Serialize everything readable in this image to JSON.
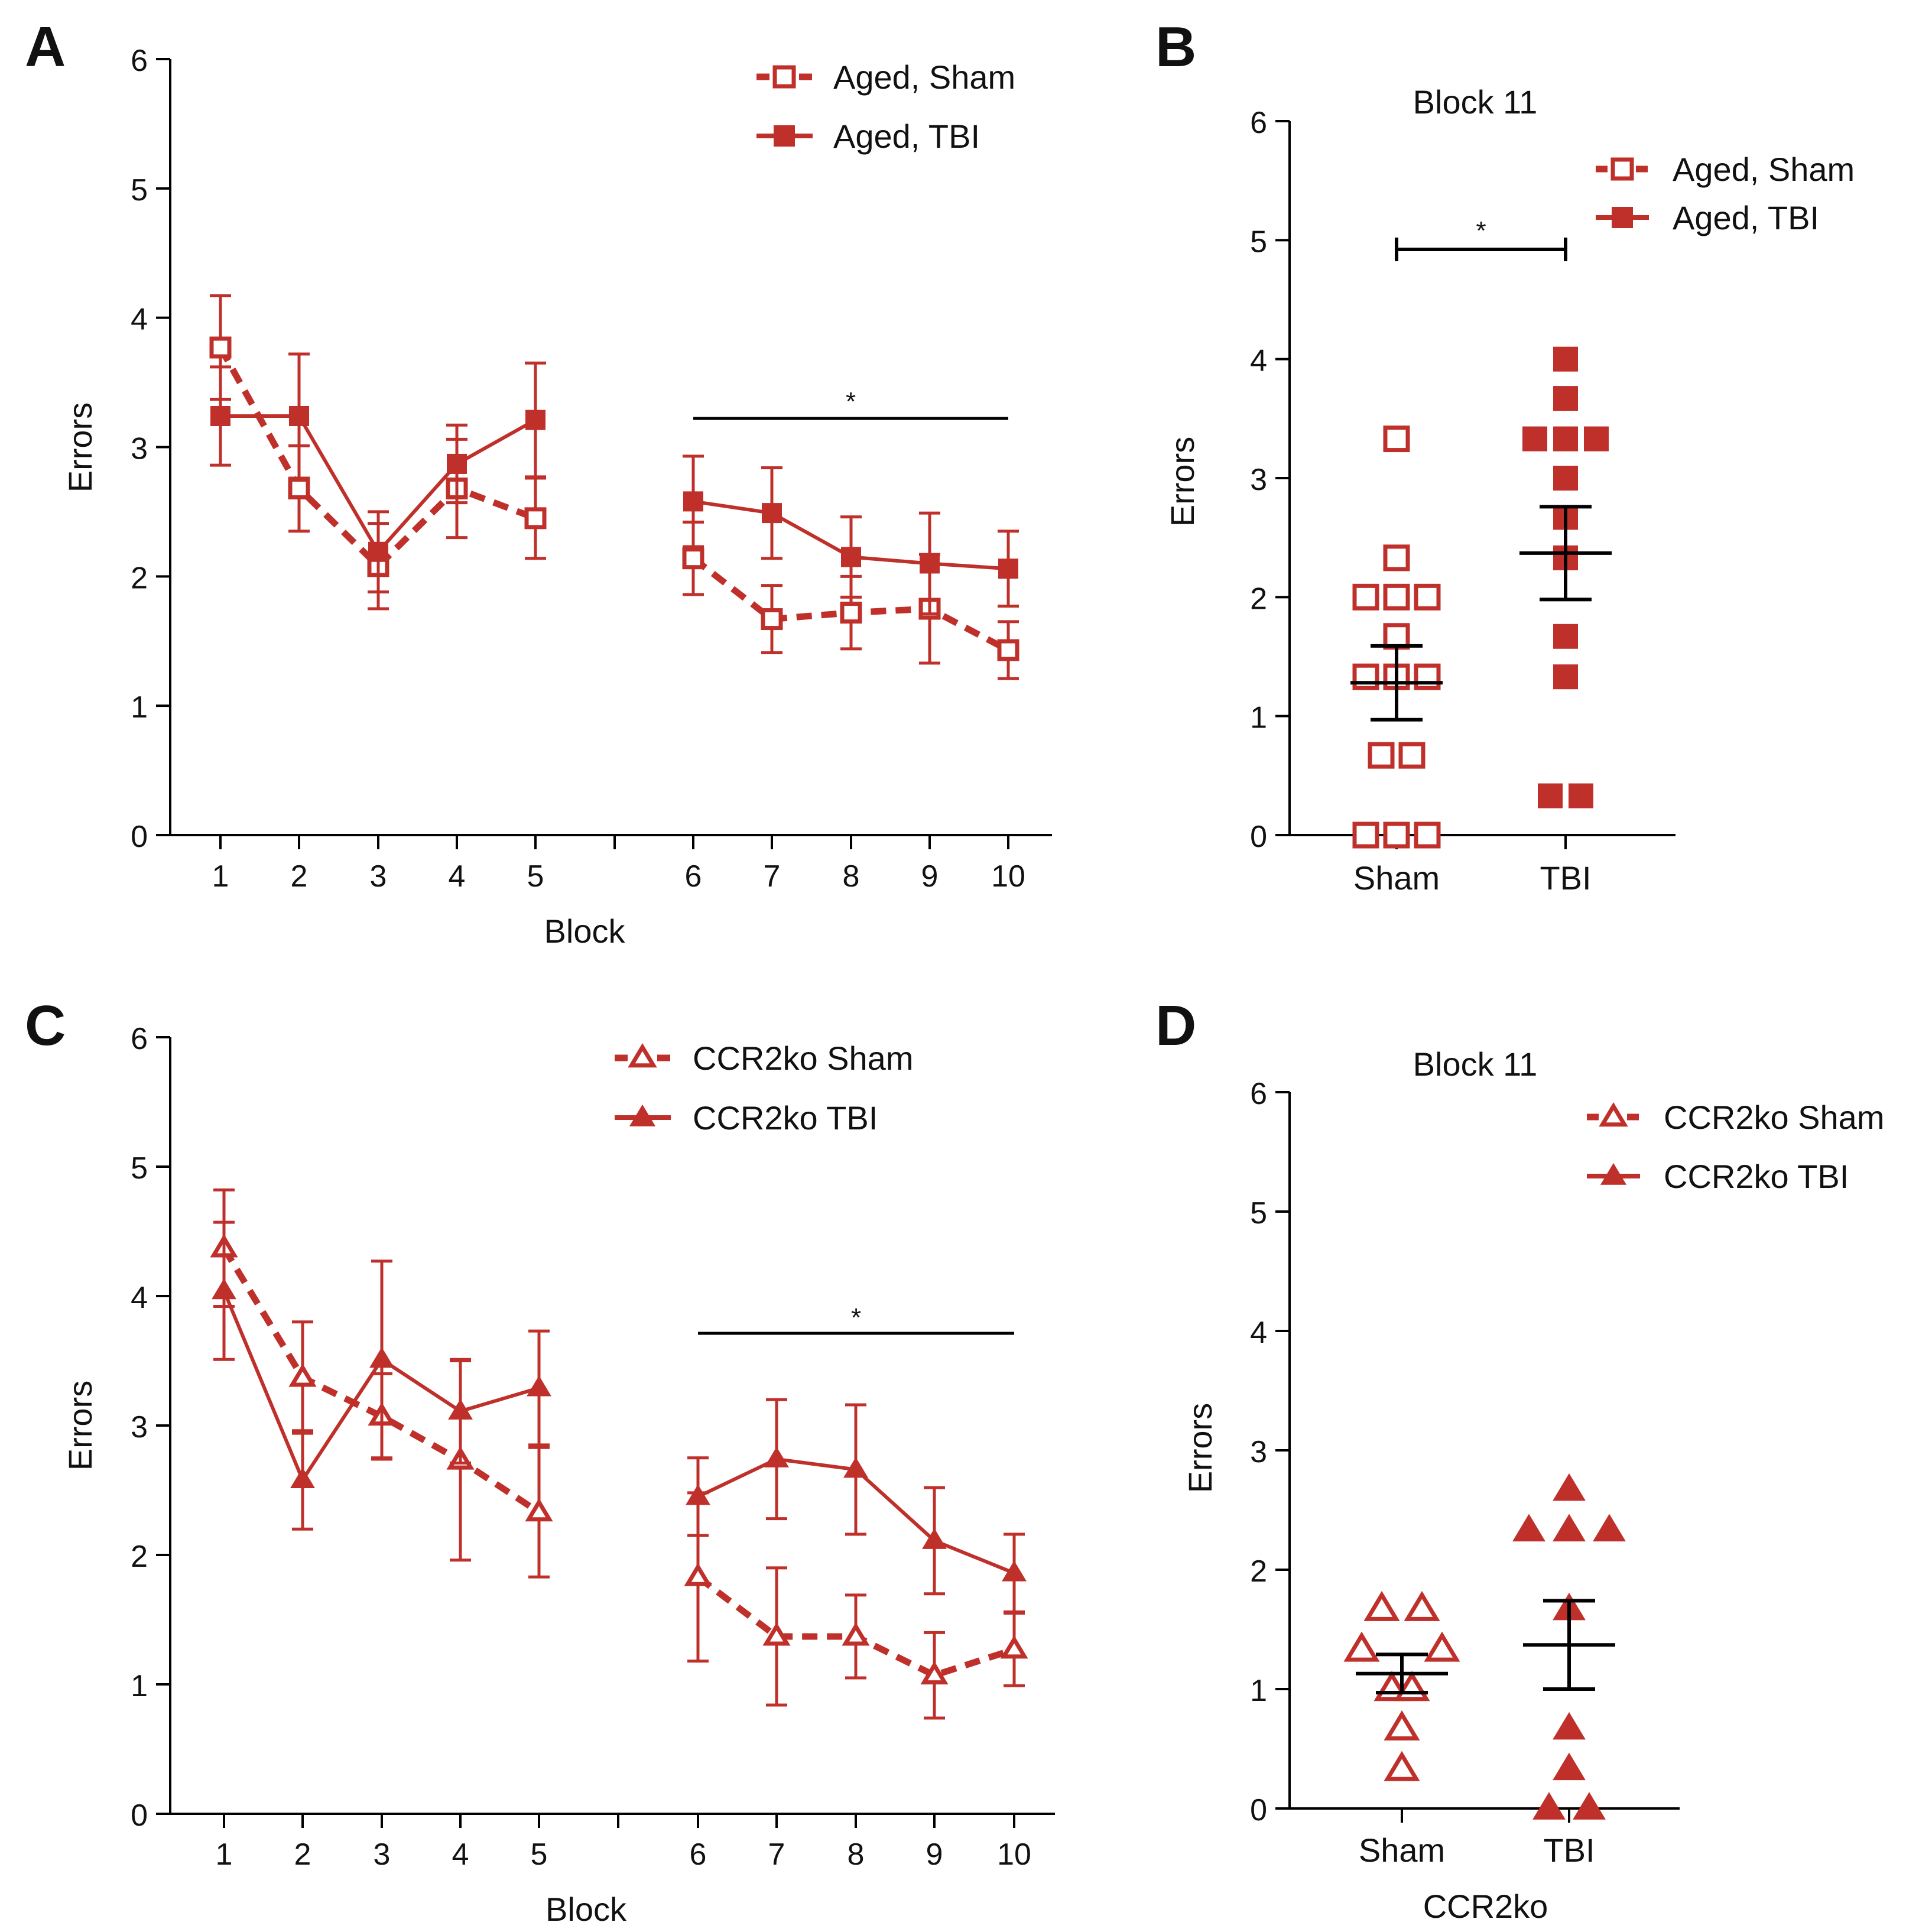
{
  "colors": {
    "series": "#c0302b",
    "axis": "#000000",
    "text": "#111111"
  },
  "chart_data": [
    {
      "panel": "A",
      "type": "line",
      "title": "",
      "xlabel": "Block",
      "ylabel": "Errors",
      "ylim": [
        0,
        6
      ],
      "yticks": [
        "0",
        "1",
        "2",
        "3",
        "4",
        "5",
        "6"
      ],
      "categories": [
        "1",
        "2",
        "3",
        "4",
        "5",
        "6",
        "7",
        "8",
        "9",
        "10"
      ],
      "series": [
        {
          "name": "Aged, Sham",
          "marker": "square-open",
          "dashed": true,
          "values": [
            3.77,
            2.68,
            2.08,
            2.68,
            2.45,
            2.14,
            1.67,
            1.72,
            1.75,
            1.43
          ],
          "errors": [
            0.4,
            0.33,
            0.33,
            0.38,
            0.31,
            0.28,
            0.26,
            0.28,
            0.42,
            0.22
          ]
        },
        {
          "name": "Aged, TBI",
          "marker": "square-filled",
          "dashed": false,
          "values": [
            3.24,
            3.24,
            2.19,
            2.87,
            3.21,
            2.58,
            2.49,
            2.15,
            2.1,
            2.06
          ],
          "errors": [
            0.38,
            0.48,
            0.31,
            0.3,
            0.44,
            0.35,
            0.35,
            0.31,
            0.39,
            0.29
          ]
        }
      ],
      "annotations": [
        {
          "text": "*",
          "span": [
            "6",
            "10"
          ]
        }
      ]
    },
    {
      "panel": "B",
      "type": "scatter",
      "title": "Block 11",
      "xlabel": "",
      "ylabel": "Errors",
      "ylim": [
        0,
        6
      ],
      "yticks": [
        "0",
        "1",
        "2",
        "3",
        "4",
        "5",
        "6"
      ],
      "categories": [
        "Sham",
        "TBI"
      ],
      "series": [
        {
          "name": "Aged, Sham",
          "marker": "square-open",
          "dashed": true,
          "mean": 1.28,
          "sem": 0.31,
          "points": [
            3.33,
            2.33,
            2.0,
            2.0,
            2.0,
            1.67,
            1.33,
            1.33,
            1.33,
            0.67,
            0.67,
            0.0,
            0.0,
            0.0
          ],
          "offsets": [
            0,
            0,
            -1,
            0,
            1,
            0,
            -1,
            0,
            1,
            -0.5,
            0.5,
            -1,
            0,
            1
          ]
        },
        {
          "name": "Aged, TBI",
          "marker": "square-filled",
          "dashed": false,
          "mean": 2.37,
          "sem": 0.39,
          "points": [
            4.0,
            3.67,
            3.33,
            3.33,
            3.33,
            3.0,
            2.67,
            2.33,
            1.67,
            1.33,
            0.33,
            0.33
          ],
          "offsets": [
            0,
            0,
            -1,
            0,
            1,
            0,
            0,
            0,
            0,
            0,
            -0.5,
            0.5
          ]
        }
      ],
      "annotations": [
        {
          "text": "*",
          "span": [
            "Sham",
            "TBI"
          ]
        }
      ]
    },
    {
      "panel": "C",
      "type": "line",
      "title": "",
      "xlabel": "Block",
      "ylabel": "Errors",
      "ylim": [
        0,
        6
      ],
      "yticks": [
        "0",
        "1",
        "2",
        "3",
        "4",
        "5",
        "6"
      ],
      "categories": [
        "1",
        "2",
        "3",
        "4",
        "5",
        "6",
        "7",
        "8",
        "9",
        "10"
      ],
      "series": [
        {
          "name": "CCR2ko Sham",
          "marker": "triangle-open",
          "dashed": true,
          "values": [
            4.37,
            3.37,
            3.07,
            2.73,
            2.33,
            1.83,
            1.37,
            1.37,
            1.07,
            1.27
          ],
          "errors": [
            0.45,
            0.43,
            0.33,
            0.77,
            0.5,
            0.65,
            0.53,
            0.32,
            0.33,
            0.28
          ]
        },
        {
          "name": "CCR2ko TBI",
          "marker": "triangle-filled",
          "dashed": false,
          "values": [
            4.04,
            2.58,
            3.51,
            3.11,
            3.29,
            2.45,
            2.74,
            2.66,
            2.11,
            1.86
          ],
          "errors": [
            0.53,
            0.38,
            0.76,
            0.4,
            0.44,
            0.3,
            0.46,
            0.5,
            0.41,
            0.3
          ]
        }
      ],
      "annotations": [
        {
          "text": "*",
          "span": [
            "6",
            "10"
          ]
        }
      ]
    },
    {
      "panel": "D",
      "type": "scatter",
      "title": "Block 11",
      "xlabel": "CCR2ko",
      "ylabel": "Errors",
      "ylim": [
        0,
        6
      ],
      "yticks": [
        "0",
        "1",
        "2",
        "3",
        "4",
        "5",
        "6"
      ],
      "categories": [
        "Sham",
        "TBI"
      ],
      "series": [
        {
          "name": "CCR2ko Sham",
          "marker": "triangle-open",
          "dashed": true,
          "mean": 1.13,
          "sem": 0.16,
          "points": [
            1.67,
            1.67,
            1.33,
            1.33,
            1.0,
            1.0,
            0.67,
            0.33
          ],
          "offsets": [
            -0.5,
            0.5,
            -1,
            1,
            -0.25,
            0.25,
            0,
            0
          ]
        },
        {
          "name": "CCR2ko TBI",
          "marker": "triangle-filled",
          "dashed": false,
          "mean": 1.37,
          "sem": 0.37,
          "points": [
            2.67,
            2.33,
            2.33,
            2.33,
            1.67,
            0.67,
            0.33,
            0.0,
            0.0
          ],
          "offsets": [
            0,
            -1,
            0,
            1,
            0,
            0,
            0,
            -0.5,
            0.5
          ]
        }
      ],
      "annotations": []
    }
  ]
}
